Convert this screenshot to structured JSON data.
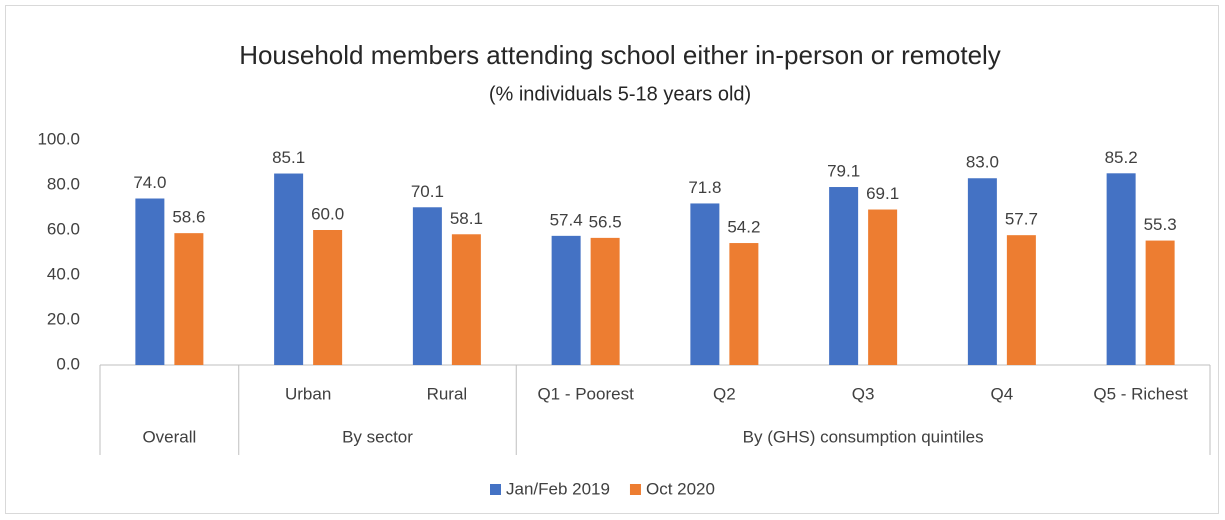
{
  "chart_data": {
    "type": "bar",
    "title": "Household members attending school either in-person or remotely",
    "subtitle": "(% individuals 5-18 years old)",
    "categories": [
      null,
      "Urban",
      "Rural",
      "Q1 - Poorest",
      "Q2",
      "Q3",
      "Q4",
      "Q5 - Richest"
    ],
    "groups": [
      {
        "name": "Overall",
        "size": 1
      },
      {
        "name": "By sector",
        "size": 2
      },
      {
        "name": "By (GHS) consumption quintiles",
        "size": 5
      }
    ],
    "series": [
      {
        "name": "Jan/Feb 2019",
        "color": "#4472c4",
        "values": [
          74.0,
          85.1,
          70.1,
          57.4,
          71.8,
          79.1,
          83.0,
          85.2
        ],
        "value_labels": [
          "74.0",
          "85.1",
          "70.1",
          "57.4",
          "71.8",
          "79.1",
          "83.0",
          "85.2"
        ]
      },
      {
        "name": "Oct 2020",
        "color": "#ed7d31",
        "values": [
          58.6,
          60.0,
          58.1,
          56.5,
          54.2,
          69.1,
          57.7,
          55.3
        ],
        "value_labels": [
          "58.6",
          "60.0",
          "58.1",
          "56.5",
          "54.2",
          "69.1",
          "57.7",
          "55.3"
        ]
      }
    ],
    "ylim": [
      0,
      100
    ],
    "yticks": [
      {
        "value": 0,
        "label": "0.0"
      },
      {
        "value": 20,
        "label": "20.0"
      },
      {
        "value": 40,
        "label": "40.0"
      },
      {
        "value": 60,
        "label": "60.0"
      },
      {
        "value": 80,
        "label": "80.0"
      },
      {
        "value": 100,
        "label": "100.0"
      }
    ],
    "grid": false,
    "legend": "bottom"
  }
}
